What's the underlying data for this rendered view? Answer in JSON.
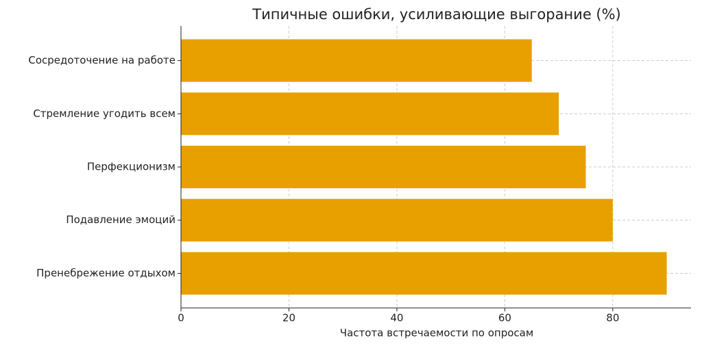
{
  "chart_data": {
    "type": "hbar",
    "title": "Типичные ошибки, усиливающие выгорание (%)",
    "x_label": "Частота встречаемости по опросам",
    "categories": [
      "Сосредоточение на работе",
      "Стремление угодить всем",
      "Перфекционизм",
      "Подавление эмоций",
      "Пренебрежение отдыхом"
    ],
    "values": [
      65,
      70,
      75,
      80,
      90
    ],
    "color": "#e8a000",
    "xlim": [
      0,
      94.5
    ],
    "xticks": [
      0,
      20,
      40,
      60,
      80
    ],
    "grid": true
  }
}
